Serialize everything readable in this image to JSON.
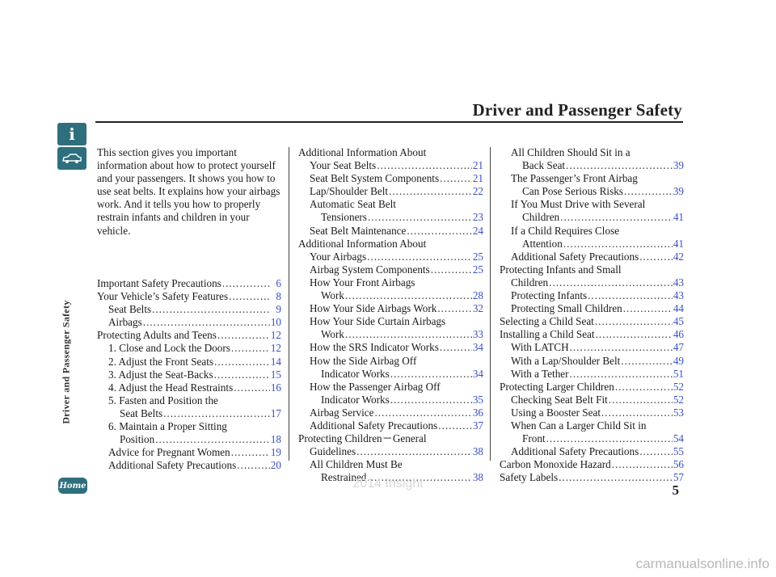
{
  "header": {
    "title": "Driver and Passenger Safety"
  },
  "side_nav": {
    "info_glyph": "i",
    "info_icon": "info-icon",
    "car_icon": "car-icon",
    "section_label": "Driver and Passenger Safety"
  },
  "home_button": {
    "label": "Home"
  },
  "page_number": "5",
  "watermark": "2014 Insight",
  "site_watermark": "carmanualsonline.info",
  "intro_text": "This section gives you important information about how to protect yourself and your passengers. It shows you how to use seat belts. It explains how your airbags work. And it tells you how to properly restrain infants and children in your vehicle.",
  "colors": {
    "link": "#3a4fc4",
    "nav": "#2e6f7e"
  },
  "toc": {
    "col1": [
      {
        "lines": [
          "Important Safety Precautions"
        ],
        "indent": 0,
        "page": "6"
      },
      {
        "lines": [
          "Your Vehicle’s Safety Features"
        ],
        "indent": 0,
        "page": "8"
      },
      {
        "lines": [
          "Seat Belts"
        ],
        "indent": 1,
        "page": "9"
      },
      {
        "lines": [
          "Airbags"
        ],
        "indent": 1,
        "page": "10"
      },
      {
        "lines": [
          "Protecting Adults and Teens"
        ],
        "indent": 0,
        "page": "12"
      },
      {
        "lines": [
          "1. Close and Lock the Doors"
        ],
        "indent": 1,
        "page": "12"
      },
      {
        "lines": [
          "2. Adjust the Front Seats"
        ],
        "indent": 1,
        "page": "14"
      },
      {
        "lines": [
          "3. Adjust the Seat-Backs"
        ],
        "indent": 1,
        "page": "15"
      },
      {
        "lines": [
          "4. Adjust the Head Restraints"
        ],
        "indent": 1,
        "page": "16"
      },
      {
        "lines": [
          "5. Fasten and Position the",
          "Seat Belts"
        ],
        "indent": 1,
        "page": "17"
      },
      {
        "lines": [
          "6. Maintain a Proper Sitting",
          "Position"
        ],
        "indent": 1,
        "page": "18"
      },
      {
        "lines": [
          "Advice for Pregnant Women"
        ],
        "indent": 1,
        "page": "19"
      },
      {
        "lines": [
          "Additional Safety Precautions"
        ],
        "indent": 1,
        "page": "20"
      }
    ],
    "col2": [
      {
        "lines": [
          "Additional Information About",
          "Your Seat Belts"
        ],
        "indent": 0,
        "page": "21"
      },
      {
        "lines": [
          "Seat Belt System Components"
        ],
        "indent": 1,
        "page": "21"
      },
      {
        "lines": [
          "Lap/Shoulder Belt"
        ],
        "indent": 1,
        "page": "22"
      },
      {
        "lines": [
          "Automatic Seat Belt",
          "Tensioners"
        ],
        "indent": 1,
        "page": "23"
      },
      {
        "lines": [
          "Seat Belt Maintenance"
        ],
        "indent": 1,
        "page": "24"
      },
      {
        "lines": [
          "Additional Information About",
          "Your Airbags"
        ],
        "indent": 0,
        "page": "25"
      },
      {
        "lines": [
          "Airbag System Components"
        ],
        "indent": 1,
        "page": "25"
      },
      {
        "lines": [
          "How Your Front Airbags",
          "Work"
        ],
        "indent": 1,
        "page": "28"
      },
      {
        "lines": [
          "How Your Side Airbags Work"
        ],
        "indent": 1,
        "page": "32"
      },
      {
        "lines": [
          "How Your Side Curtain Airbags",
          "Work"
        ],
        "indent": 1,
        "page": "33"
      },
      {
        "lines": [
          "How the SRS Indicator Works"
        ],
        "indent": 1,
        "page": "34"
      },
      {
        "lines": [
          "How the Side Airbag Off",
          "Indicator Works"
        ],
        "indent": 1,
        "page": "34"
      },
      {
        "lines": [
          "How the Passenger Airbag Off",
          "Indicator Works"
        ],
        "indent": 1,
        "page": "35"
      },
      {
        "lines": [
          "Airbag Service"
        ],
        "indent": 1,
        "page": "36"
      },
      {
        "lines": [
          "Additional Safety Precautions"
        ],
        "indent": 1,
        "page": "37"
      },
      {
        "lines": [
          "Protecting Children－General",
          "Guidelines"
        ],
        "indent": 0,
        "page": "38"
      },
      {
        "lines": [
          "All Children Must Be",
          "Restrained"
        ],
        "indent": 1,
        "page": "38"
      }
    ],
    "col3": [
      {
        "lines": [
          "All Children Should Sit in a",
          "Back Seat"
        ],
        "indent": 1,
        "page": "39"
      },
      {
        "lines": [
          "The Passenger’s Front Airbag",
          "Can Pose Serious Risks"
        ],
        "indent": 1,
        "page": "39"
      },
      {
        "lines": [
          "If You Must Drive with Several",
          "Children"
        ],
        "indent": 1,
        "page": "41"
      },
      {
        "lines": [
          "If a Child Requires Close",
          "Attention"
        ],
        "indent": 1,
        "page": "41"
      },
      {
        "lines": [
          "Additional Safety Precautions"
        ],
        "indent": 1,
        "page": "42"
      },
      {
        "lines": [
          "Protecting Infants and Small",
          "Children"
        ],
        "indent": 0,
        "page": "43"
      },
      {
        "lines": [
          "Protecting Infants"
        ],
        "indent": 1,
        "page": "43"
      },
      {
        "lines": [
          "Protecting Small Children"
        ],
        "indent": 1,
        "page": "44"
      },
      {
        "lines": [
          "Selecting a Child Seat"
        ],
        "indent": 0,
        "page": "45"
      },
      {
        "lines": [
          "Installing a Child Seat"
        ],
        "indent": 0,
        "page": "46"
      },
      {
        "lines": [
          "With LATCH"
        ],
        "indent": 1,
        "page": "47"
      },
      {
        "lines": [
          "With a Lap/Shoulder Belt"
        ],
        "indent": 1,
        "page": "49"
      },
      {
        "lines": [
          "With a Tether"
        ],
        "indent": 1,
        "page": "51"
      },
      {
        "lines": [
          "Protecting Larger Children"
        ],
        "indent": 0,
        "page": "52"
      },
      {
        "lines": [
          "Checking Seat Belt Fit"
        ],
        "indent": 1,
        "page": "52"
      },
      {
        "lines": [
          "Using a Booster Seat"
        ],
        "indent": 1,
        "page": "53"
      },
      {
        "lines": [
          "When Can a Larger Child Sit in",
          "Front"
        ],
        "indent": 1,
        "page": "54"
      },
      {
        "lines": [
          "Additional Safety Precautions"
        ],
        "indent": 1,
        "page": "55"
      },
      {
        "lines": [
          "Carbon Monoxide Hazard"
        ],
        "indent": 0,
        "page": "56"
      },
      {
        "lines": [
          "Safety Labels"
        ],
        "indent": 0,
        "page": "57"
      }
    ]
  }
}
